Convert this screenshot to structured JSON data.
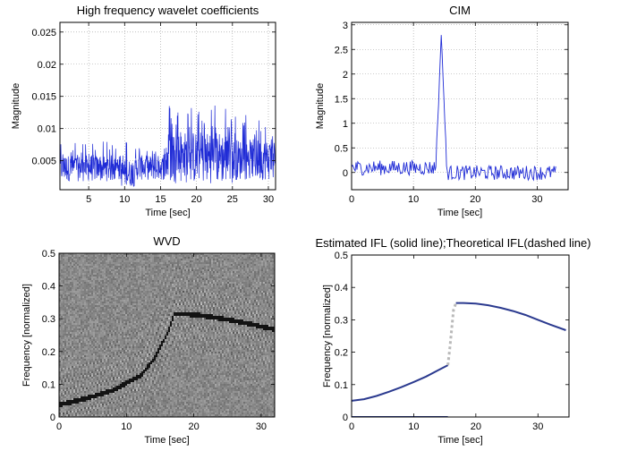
{
  "chart_data": [
    {
      "type": "line",
      "title": "High frequency wavelet coefficients",
      "xlabel": "Time [sec]",
      "ylabel": "Magnitude",
      "xlim": [
        1,
        31
      ],
      "ylim": [
        0.0005,
        0.0265
      ],
      "xticks": [
        5,
        10,
        15,
        20,
        25,
        30
      ],
      "yticks": [
        0.005,
        0.01,
        0.015,
        0.02,
        0.025
      ],
      "ytick_labels": [
        "0.005",
        "0.01",
        "0.015",
        "0.02",
        "0.025"
      ],
      "grid": true,
      "color": "#1f2bd6",
      "segments": [
        {
          "x_range": [
            1,
            9.5
          ],
          "min": 0.0018,
          "max": 0.008,
          "center": 0.0042
        },
        {
          "x_range": [
            9.5,
            11.5
          ],
          "min": 0.001,
          "max": 0.009,
          "center": 0.002
        },
        {
          "x_range": [
            11.5,
            15.8
          ],
          "min": 0.002,
          "max": 0.0075,
          "center": 0.0045
        },
        {
          "x_range": [
            15.8,
            25
          ],
          "min": 0.0015,
          "max": 0.0142,
          "center": 0.0058
        },
        {
          "x_range": [
            25,
            31
          ],
          "min": 0.002,
          "max": 0.0125,
          "center": 0.005
        }
      ]
    },
    {
      "type": "line",
      "title": "CIM",
      "xlabel": "Time [sec]",
      "ylabel": "Magnitude",
      "xlim": [
        0,
        35
      ],
      "ylim": [
        -0.35,
        3.05
      ],
      "xticks": [
        0,
        10,
        20,
        30
      ],
      "yticks": [
        0,
        0.5,
        1,
        1.5,
        2,
        2.5,
        3
      ],
      "ytick_labels": [
        "0",
        "0.5",
        "1",
        "1.5",
        "2",
        "2.5",
        "3"
      ],
      "grid": true,
      "color": "#1f2bd6",
      "baseline_noise": [
        0,
        0.15
      ],
      "peak": {
        "x": 14.5,
        "y": 2.82
      },
      "x_end": 33
    },
    {
      "type": "heatmap",
      "title": "WVD",
      "xlabel": "Time [sec]",
      "ylabel": "Frequency [normalized]",
      "xlim": [
        0,
        32
      ],
      "ylim": [
        0,
        0.5
      ],
      "xticks": [
        0,
        10,
        20,
        30
      ],
      "yticks": [
        0,
        0.1,
        0.2,
        0.3,
        0.4,
        0.5
      ],
      "ytick_labels": [
        "0",
        "0.1",
        "0.2",
        "0.3",
        "0.4",
        "0.5"
      ],
      "ridge": {
        "x": [
          0,
          4,
          8,
          12,
          14,
          16,
          17,
          20,
          25,
          32
        ],
        "y": [
          0.04,
          0.06,
          0.085,
          0.13,
          0.18,
          0.26,
          0.318,
          0.315,
          0.3,
          0.27
        ]
      }
    },
    {
      "type": "line",
      "title": "Estimated IFL (solid line);Theoretical IFL(dashed line)",
      "xlabel": "Time [sec]",
      "ylabel": "Frequency [normalized]",
      "xlim": [
        0,
        35
      ],
      "ylim": [
        0,
        0.5
      ],
      "xticks": [
        0,
        10,
        20,
        30
      ],
      "yticks": [
        0,
        0.1,
        0.2,
        0.3,
        0.4,
        0.5
      ],
      "ytick_labels": [
        "0",
        "0.1",
        "0.2",
        "0.3",
        "0.4",
        "0.5"
      ],
      "grid": false,
      "series": [
        {
          "style": "solid",
          "color": "#2b3a8f",
          "x": [
            0,
            2,
            4,
            6,
            8,
            10,
            12,
            14,
            15.5
          ],
          "y": [
            0.05,
            0.055,
            0.065,
            0.078,
            0.092,
            0.108,
            0.125,
            0.145,
            0.16
          ]
        },
        {
          "style": "solid",
          "color": "#2b3a8f",
          "x": [
            16.8,
            18,
            20,
            22,
            24,
            26,
            28,
            30,
            32,
            34.5
          ],
          "y": [
            0.352,
            0.352,
            0.35,
            0.345,
            0.337,
            0.327,
            0.315,
            0.3,
            0.285,
            0.268
          ]
        },
        {
          "style": "solid",
          "color": "#2b3a8f",
          "x": [
            0,
            15.5
          ],
          "y": [
            0.0,
            0.0
          ]
        },
        {
          "style": "dashed",
          "color": "#b9b9b9",
          "x": [
            15.5,
            15.8,
            16.1,
            16.4,
            16.8
          ],
          "y": [
            0.16,
            0.21,
            0.27,
            0.33,
            0.352
          ]
        }
      ]
    }
  ]
}
